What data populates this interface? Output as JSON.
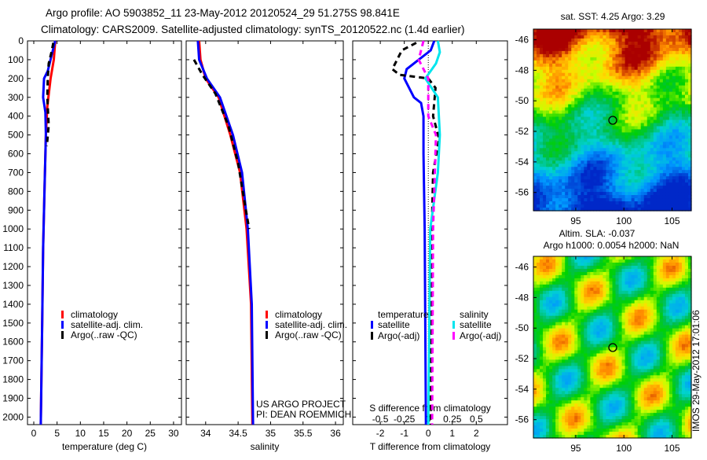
{
  "title_line1": "Argo profile: AO 5903852_11 23-May-2012 20120524_29 51.275S 98.841E",
  "title_line2": "Climatology: CARS2009. Satellite-adjusted climatology: synTS_20120522.nc (1.4d earlier)",
  "side_label": "IMOS 29-May-2012 17:01:06",
  "colors": {
    "climatology": "#ff0000",
    "satellite": "#0000ff",
    "argo": "#000000",
    "sal_satellite": "#00e5ee",
    "sal_argo": "#ff00ff"
  },
  "chart_data": [
    {
      "type": "line",
      "name": "temperature",
      "xlabel": "temperature (deg C)",
      "xlim": [
        -1.35,
        31.7
      ],
      "ylim": [
        2040,
        0
      ],
      "xticks": [
        "0",
        "5",
        "10",
        "15",
        "20",
        "25",
        "30"
      ],
      "xtick_values": [
        0,
        5,
        10,
        15,
        20,
        25,
        30
      ],
      "yticks": [
        "0",
        "100",
        "200",
        "300",
        "400",
        "500",
        "600",
        "700",
        "800",
        "900",
        "1000",
        "1100",
        "1200",
        "1300",
        "1400",
        "1500",
        "1600",
        "1700",
        "1800",
        "1900",
        "2000"
      ],
      "legend": [
        "climatology",
        "satellite-adj. clim.",
        "Argo(..raw -QC)"
      ],
      "series": [
        {
          "name": "climatology",
          "color": "#ff0000",
          "dash": false,
          "points": [
            [
              4.6,
              0
            ],
            [
              4.3,
              100
            ],
            [
              3.6,
              200
            ],
            [
              2.9,
              350
            ],
            [
              2.6,
              500
            ],
            [
              2.3,
              800
            ],
            [
              2.0,
              1100
            ],
            [
              1.8,
              1500
            ],
            [
              1.5,
              2040
            ]
          ]
        },
        {
          "name": "satellite-adj. clim.",
          "color": "#0000ff",
          "dash": false,
          "points": [
            [
              4.6,
              0
            ],
            [
              3.8,
              80
            ],
            [
              3.0,
              160
            ],
            [
              2.2,
              200
            ],
            [
              2.0,
              300
            ],
            [
              2.5,
              380
            ],
            [
              2.6,
              500
            ],
            [
              2.3,
              800
            ],
            [
              2.0,
              1100
            ],
            [
              1.8,
              1500
            ],
            [
              1.5,
              2040
            ]
          ]
        },
        {
          "name": "Argo(..raw -QC)",
          "color": "#000000",
          "dash": true,
          "points": [
            [
              4.2,
              10
            ],
            [
              3.8,
              60
            ],
            [
              3.2,
              120
            ],
            [
              3.0,
              200
            ],
            [
              2.9,
              300
            ],
            [
              3.2,
              450
            ],
            [
              2.8,
              560
            ]
          ]
        }
      ]
    },
    {
      "type": "line",
      "name": "salinity",
      "xlabel": "salinity",
      "xlim": [
        33.7,
        36.12
      ],
      "ylim": [
        2040,
        0
      ],
      "xticks": [
        "34",
        "34.5",
        "35",
        "35.5",
        "36"
      ],
      "xtick_values": [
        34,
        34.5,
        35,
        35.5,
        36
      ],
      "legend": [
        "climatology",
        "satellite-adj. clim.",
        "Argo(..raw -QC)"
      ],
      "annotation": [
        "US ARGO PROJECT",
        "PI: DEAN ROEMMICH"
      ],
      "series": [
        {
          "name": "climatology",
          "color": "#ff0000",
          "dash": false,
          "points": [
            [
              33.9,
              0
            ],
            [
              33.92,
              100
            ],
            [
              34.0,
              200
            ],
            [
              34.2,
              300
            ],
            [
              34.38,
              500
            ],
            [
              34.53,
              700
            ],
            [
              34.63,
              1000
            ],
            [
              34.7,
              1400
            ],
            [
              34.72,
              2040
            ]
          ]
        },
        {
          "name": "satellite-adj. clim.",
          "color": "#0000ff",
          "dash": false,
          "points": [
            [
              33.88,
              0
            ],
            [
              33.9,
              100
            ],
            [
              34.02,
              200
            ],
            [
              34.22,
              300
            ],
            [
              34.42,
              500
            ],
            [
              34.56,
              700
            ],
            [
              34.65,
              1000
            ],
            [
              34.71,
              1400
            ],
            [
              34.73,
              2040
            ]
          ]
        },
        {
          "name": "Argo(..raw -QC)",
          "color": "#000000",
          "dash": true,
          "points": [
            [
              33.82,
              100
            ],
            [
              33.95,
              180
            ],
            [
              34.15,
              280
            ],
            [
              34.35,
              450
            ],
            [
              34.5,
              650
            ],
            [
              34.62,
              900
            ],
            [
              34.67,
              1000
            ]
          ]
        }
      ]
    },
    {
      "type": "line",
      "name": "difference",
      "xlabel": "T difference from climatology",
      "xlim": [
        -3.15,
        3.3
      ],
      "ylim": [
        2040,
        0
      ],
      "xticks": [
        "-2",
        "-1",
        "0",
        "1",
        "2"
      ],
      "xtick_values": [
        -2,
        -1,
        0,
        1,
        2
      ],
      "x2label": "S difference from climatology",
      "x2ticks": [
        "-0.5",
        "-0.25",
        "0",
        "0.25",
        "0.5"
      ],
      "x2tick_values": [
        -0.5,
        -0.25,
        0,
        0.25,
        0.5
      ],
      "legend_groups": [
        {
          "title": "temperature",
          "items": [
            "satellite",
            "Argo(-adj)"
          ]
        },
        {
          "title": "salinity",
          "items": [
            "satellite",
            "Argo(-adj)"
          ]
        }
      ],
      "series": [
        {
          "name": "temperature satellite",
          "color": "#0000ff",
          "dash": false,
          "scale": "T",
          "points": [
            [
              0.25,
              0
            ],
            [
              0.1,
              50
            ],
            [
              -0.4,
              100
            ],
            [
              -0.9,
              150
            ],
            [
              -1.0,
              200
            ],
            [
              -0.6,
              300
            ],
            [
              -0.3,
              330
            ],
            [
              -0.2,
              400
            ],
            [
              -0.2,
              600
            ],
            [
              -0.15,
              1000
            ],
            [
              -0.1,
              2040
            ]
          ]
        },
        {
          "name": "temperature Argo(-adj)",
          "color": "#000000",
          "dash": true,
          "scale": "T",
          "points": [
            [
              -0.5,
              10
            ],
            [
              -1.1,
              50
            ],
            [
              -1.5,
              150
            ],
            [
              -1.2,
              180
            ],
            [
              0,
              200
            ],
            [
              0.3,
              250
            ],
            [
              0.2,
              400
            ],
            [
              0.45,
              520
            ],
            [
              0.2,
              700
            ],
            [
              0.15,
              1000
            ],
            [
              0.1,
              2040
            ]
          ]
        },
        {
          "name": "salinity satellite",
          "color": "#00e5ee",
          "dash": false,
          "scale": "S",
          "points": [
            [
              0.1,
              0
            ],
            [
              0.12,
              60
            ],
            [
              0.08,
              120
            ],
            [
              -0.03,
              200
            ],
            [
              0.1,
              300
            ],
            [
              0.12,
              500
            ],
            [
              0.1,
              700
            ],
            [
              0.02,
              1000
            ],
            [
              0,
              2040
            ]
          ]
        },
        {
          "name": "salinity Argo(-adj)",
          "color": "#ff00ff",
          "dash": true,
          "scale": "S",
          "points": [
            [
              -0.05,
              0
            ],
            [
              -0.1,
              100
            ],
            [
              0,
              200
            ],
            [
              0,
              400
            ],
            [
              0.08,
              500
            ],
            [
              0.05,
              1000
            ],
            [
              0.04,
              2040
            ]
          ]
        }
      ]
    },
    {
      "type": "heatmap",
      "name": "sst-map",
      "title": "sat. SST: 4.25 Argo: 3.29",
      "xticks": [
        "95",
        "100",
        "105"
      ],
      "yticks": [
        "-46",
        "-48",
        "-50",
        "-52",
        "-54",
        "-56"
      ],
      "marker": {
        "lon": 98.841,
        "lat": -51.275
      }
    },
    {
      "type": "heatmap",
      "name": "sla-map",
      "title": "Altim. SLA: -0.037",
      "subtitle": "Argo h1000: 0.0054 h2000: NaN",
      "xticks": [
        "95",
        "100",
        "105"
      ],
      "yticks": [
        "-46",
        "-48",
        "-50",
        "-52",
        "-54",
        "-56"
      ],
      "marker": {
        "lon": 98.841,
        "lat": -51.275
      }
    }
  ]
}
